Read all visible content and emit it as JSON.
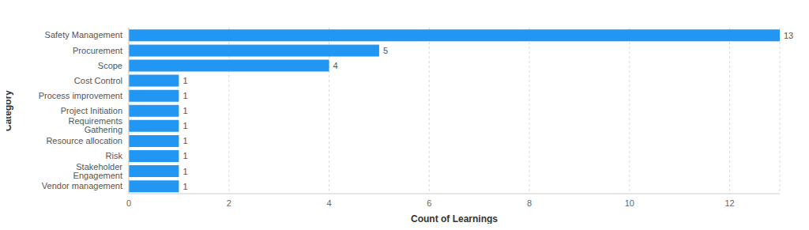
{
  "chart_data": {
    "type": "bar",
    "orientation": "horizontal",
    "categories": [
      "Safety Management",
      "Procurement",
      "Scope",
      "Cost Control",
      "Process improvement",
      "Project Initiation",
      "Requirements Gathering",
      "Resource allocation",
      "Risk",
      "Stakeholder Engagement",
      "Vendor management"
    ],
    "values": [
      13,
      5,
      4,
      1,
      1,
      1,
      1,
      1,
      1,
      1,
      1
    ],
    "color": "#2196f3",
    "x_label": "Count of Learnings",
    "y_label": "Category",
    "xlim": [
      0,
      13
    ],
    "xticks": [
      0,
      2,
      4,
      6,
      8,
      10,
      12
    ],
    "grid": true,
    "data_labels": true
  }
}
